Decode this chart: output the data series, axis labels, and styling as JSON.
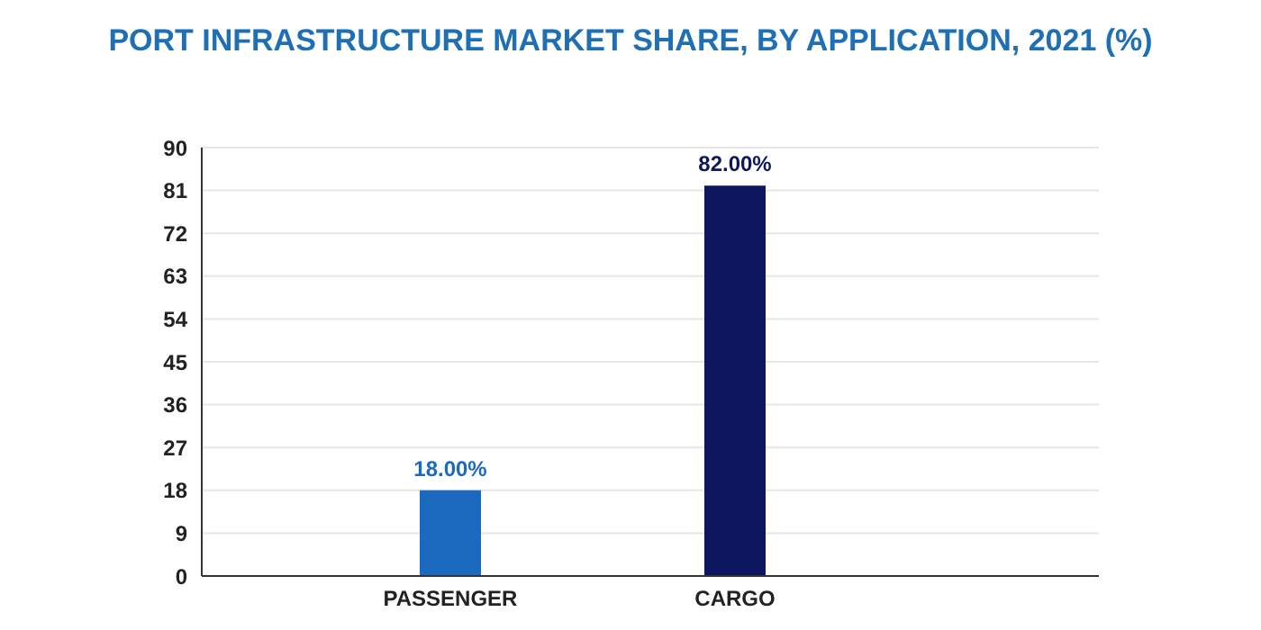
{
  "chart_data": {
    "type": "bar",
    "title": "PORT INFRASTRUCTURE MARKET SHARE, BY APPLICATION, 2021 (%)",
    "categories": [
      "PASSENGER",
      "CARGO"
    ],
    "values": [
      18,
      82
    ],
    "colors": [
      "#1b6ac0",
      "#0c1760"
    ],
    "value_labels": [
      "18.00%",
      "82.00%"
    ],
    "ylim": [
      0,
      90
    ],
    "yticks": [
      0,
      9,
      18,
      27,
      36,
      45,
      54,
      63,
      72,
      81,
      90
    ],
    "grid": "y"
  }
}
